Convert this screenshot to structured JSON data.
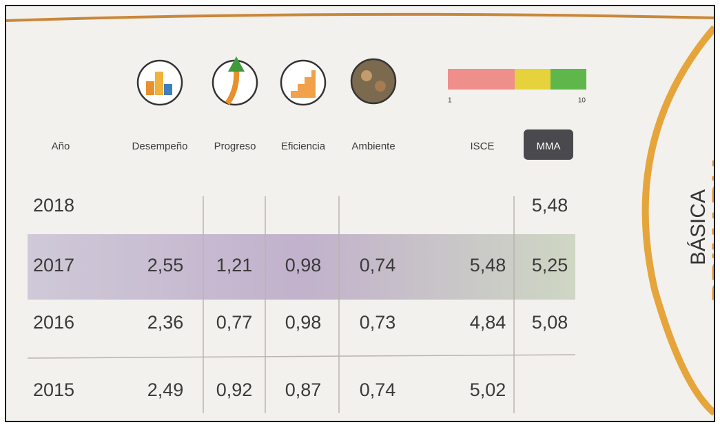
{
  "scale": {
    "min_label": "1",
    "max_label": "10"
  },
  "side": {
    "level": "BÁSICA",
    "stage": "PRIMARIA"
  },
  "table": {
    "header": [
      "Año",
      "Desempeño",
      "Progreso",
      "Eficiencia",
      "Ambiente",
      "ISCE",
      "MMA"
    ],
    "rows": [
      [
        "2018",
        null,
        null,
        null,
        null,
        null,
        "5,48"
      ],
      [
        "2017",
        "2,55",
        "1,21",
        "0,98",
        "0,74",
        "5,48",
        "5,25"
      ],
      [
        "2016",
        "2,36",
        "0,77",
        "0,98",
        "0,73",
        "4,84",
        "5,08"
      ],
      [
        "2015",
        "2,49",
        "0,92",
        "0,87",
        "0,74",
        "5,02",
        null
      ]
    ]
  }
}
